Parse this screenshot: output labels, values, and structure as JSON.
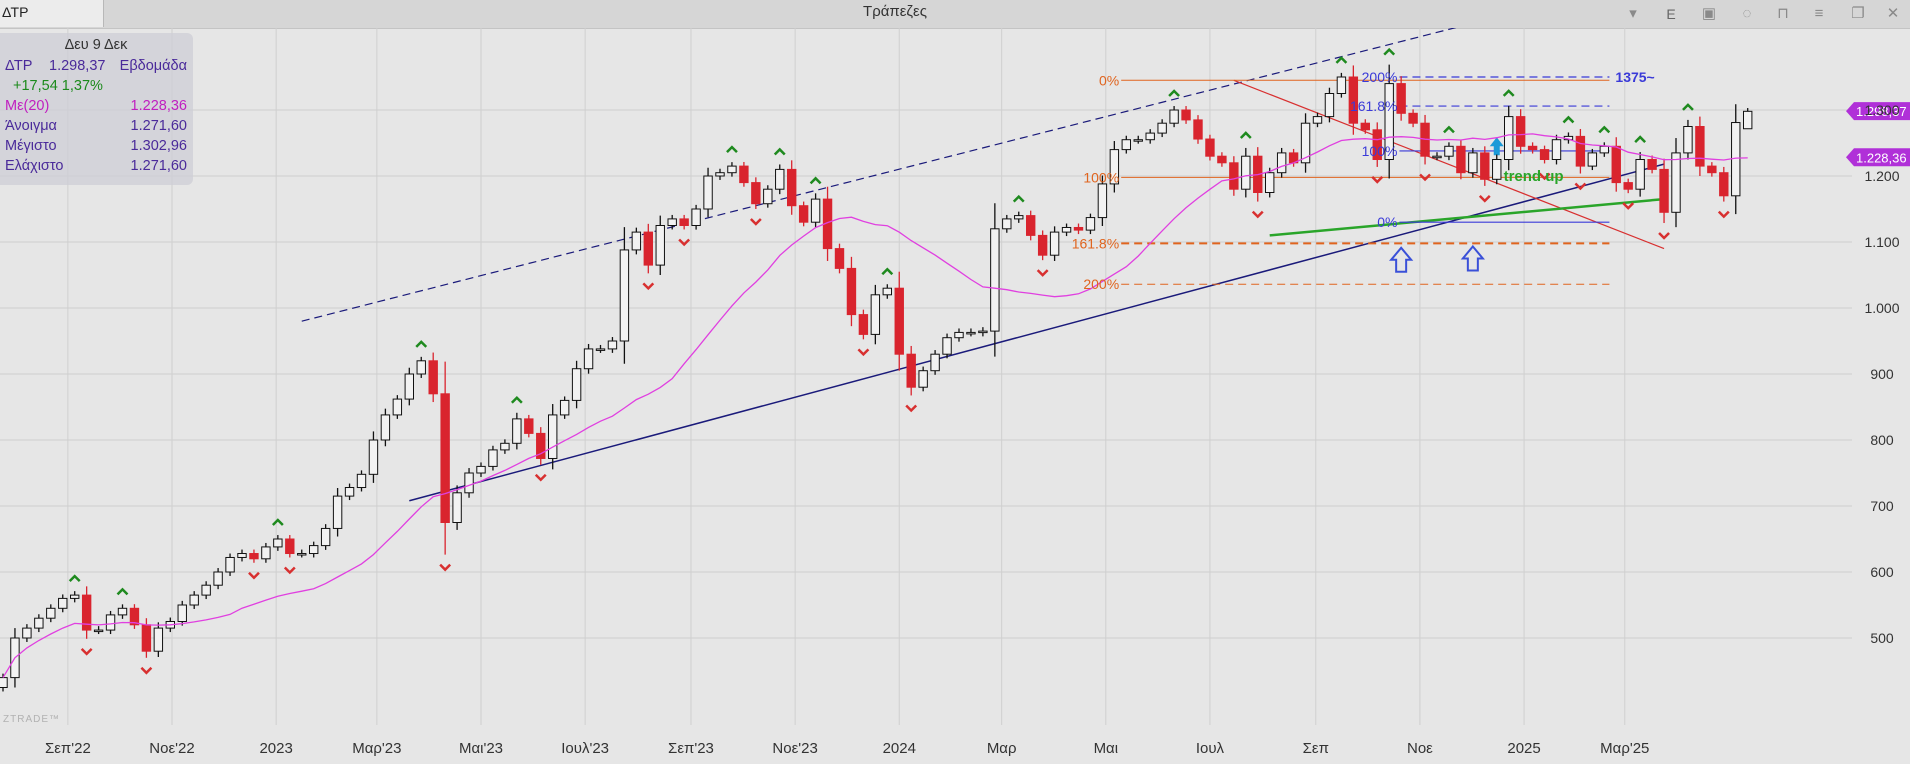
{
  "window": {
    "symbol_tab": "ΔΤΡ",
    "title": "Τράπεζες",
    "toolbar_letter": "E"
  },
  "infobox": {
    "date": "Δευ 9 Δεκ",
    "symbol": "ΔΤΡ",
    "price": "1.298,37",
    "period": "Εβδομάδα",
    "change": "+17,54 1,37%",
    "ma_label": "Με(20)",
    "ma_value": "1.228,36",
    "open_label": "Άνοιγμα",
    "open_value": "1.271,60",
    "high_label": "Μέγιστο",
    "high_value": "1.302,96",
    "low_label": "Ελάχιστο",
    "low_value": "1.271,60"
  },
  "watermark": "ZTRADE™",
  "colors": {
    "up_candle": "#f2f2f2",
    "down_candle": "#d9242e",
    "ma": "#e040e0",
    "fib_orange": "#e0641e",
    "fib_blue": "#3a3ad8",
    "trendline_navy": "#1a1a7a",
    "trend_up": "#2aa52a",
    "arrow_green": "#1f8a1f",
    "arrow_red": "#d83030",
    "price_label": "#b030d8"
  },
  "chart_data": {
    "type": "candlestick",
    "symbol": "ΔΤΡ",
    "interval": "Εβδομάδα",
    "ylim": [
      385,
      1560
    ],
    "y_ticks": [
      500,
      600,
      700,
      800,
      900,
      1000,
      1100,
      1200,
      1300
    ],
    "y_tick_labels": [
      "500",
      "600",
      "700",
      "800",
      "900",
      "1.000",
      "1.100",
      "1.200",
      "1.300"
    ],
    "x_tick_labels": [
      {
        "date": "2022-09-01",
        "label": "Σεπ'22"
      },
      {
        "date": "2022-11-01",
        "label": "Νοε'22"
      },
      {
        "date": "2023-01-01",
        "label": "2023"
      },
      {
        "date": "2023-03-01",
        "label": "Μαρ'23"
      },
      {
        "date": "2023-05-01",
        "label": "Μαι'23"
      },
      {
        "date": "2023-07-01",
        "label": "Ιουλ'23"
      },
      {
        "date": "2023-09-01",
        "label": "Σεπ'23"
      },
      {
        "date": "2023-11-01",
        "label": "Νοε'23"
      },
      {
        "date": "2024-01-01",
        "label": "2024"
      },
      {
        "date": "2024-03-01",
        "label": "Μαρ"
      },
      {
        "date": "2024-05-01",
        "label": "Μαι"
      },
      {
        "date": "2024-07-01",
        "label": "Ιουλ"
      },
      {
        "date": "2024-09-01",
        "label": "Σεπ"
      },
      {
        "date": "2024-11-01",
        "label": "Νοε"
      },
      {
        "date": "2025-01-01",
        "label": "2025"
      },
      {
        "date": "2025-03-01",
        "label": "Μαρ'25"
      }
    ],
    "closes": [
      440,
      500,
      515,
      530,
      545,
      560,
      565,
      512,
      512,
      535,
      545,
      520,
      480,
      515,
      525,
      550,
      565,
      580,
      600,
      622,
      628,
      620,
      638,
      650,
      628,
      628,
      640,
      666,
      715,
      728,
      748,
      800,
      838,
      862,
      900,
      920,
      870,
      675,
      720,
      750,
      760,
      785,
      795,
      832,
      810,
      772,
      838,
      860,
      908,
      938,
      938,
      950,
      1088,
      1115,
      1065,
      1125,
      1135,
      1125,
      1150,
      1200,
      1205,
      1215,
      1190,
      1158,
      1180,
      1210,
      1155,
      1130,
      1165,
      1090,
      1060,
      990,
      960,
      1020,
      1030,
      930,
      880,
      905,
      930,
      955,
      963,
      963,
      965,
      1120,
      1135,
      1140,
      1110,
      1080,
      1115,
      1122,
      1118,
      1137,
      1188,
      1240,
      1255,
      1255,
      1265,
      1280,
      1300,
      1285,
      1256,
      1230,
      1220,
      1180,
      1230,
      1175,
      1205,
      1235,
      1220,
      1280,
      1290,
      1325,
      1350,
      1280,
      1270,
      1225,
      1340,
      1295,
      1280,
      1230,
      1230,
      1245,
      1205,
      1235,
      1195,
      1225,
      1290,
      1245,
      1240,
      1225,
      1255,
      1260,
      1215,
      1235,
      1245,
      1190,
      1180,
      1225,
      1210,
      1145,
      1235,
      1275,
      1215,
      1205,
      1170,
      1281,
      1298
    ],
    "last": {
      "open": 1271.6,
      "high": 1302.96,
      "low": 1271.6,
      "close": 1298.37,
      "change": 17.54,
      "change_pct": 1.37
    },
    "series": [
      {
        "name": "Με(20)",
        "last_value": 1228.36
      }
    ],
    "price_labels": [
      "1.298,37",
      "1.228,36"
    ],
    "fibonacci": [
      {
        "color": "orange",
        "levels": [
          {
            "label": "0%",
            "value": 1345
          },
          {
            "label": "100%",
            "value": 1198
          },
          {
            "label": "161.8%",
            "value": 1098
          },
          {
            "label": "200%",
            "value": 1036
          }
        ]
      },
      {
        "color": "blue",
        "levels": [
          {
            "label": "0%",
            "value": 1130
          },
          {
            "label": "100%",
            "value": 1238
          },
          {
            "label": "161.8%",
            "value": 1306
          },
          {
            "label": "200%",
            "value": 1350
          }
        ]
      }
    ],
    "target_label": "1375~",
    "annotations": [
      "trend up"
    ],
    "trendlines": [
      {
        "kind": "support",
        "from": {
          "date": "2023-03-20",
          "value": 708
        },
        "to": {
          "date": "2025-03-24",
          "value": 1218
        }
      },
      {
        "kind": "channel-top",
        "from": {
          "date": "2023-01-16",
          "value": 980
        },
        "to": {
          "date": "2024-12-15",
          "value": 1440
        }
      },
      {
        "kind": "resistance",
        "from": {
          "date": "2024-07-15",
          "value": 1345
        },
        "to": {
          "date": "2025-03-24",
          "value": 1090
        }
      },
      {
        "kind": "trend-up",
        "from": {
          "date": "2024-08-05",
          "value": 1110
        },
        "to": {
          "date": "2025-03-24",
          "value": 1165
        }
      }
    ]
  }
}
